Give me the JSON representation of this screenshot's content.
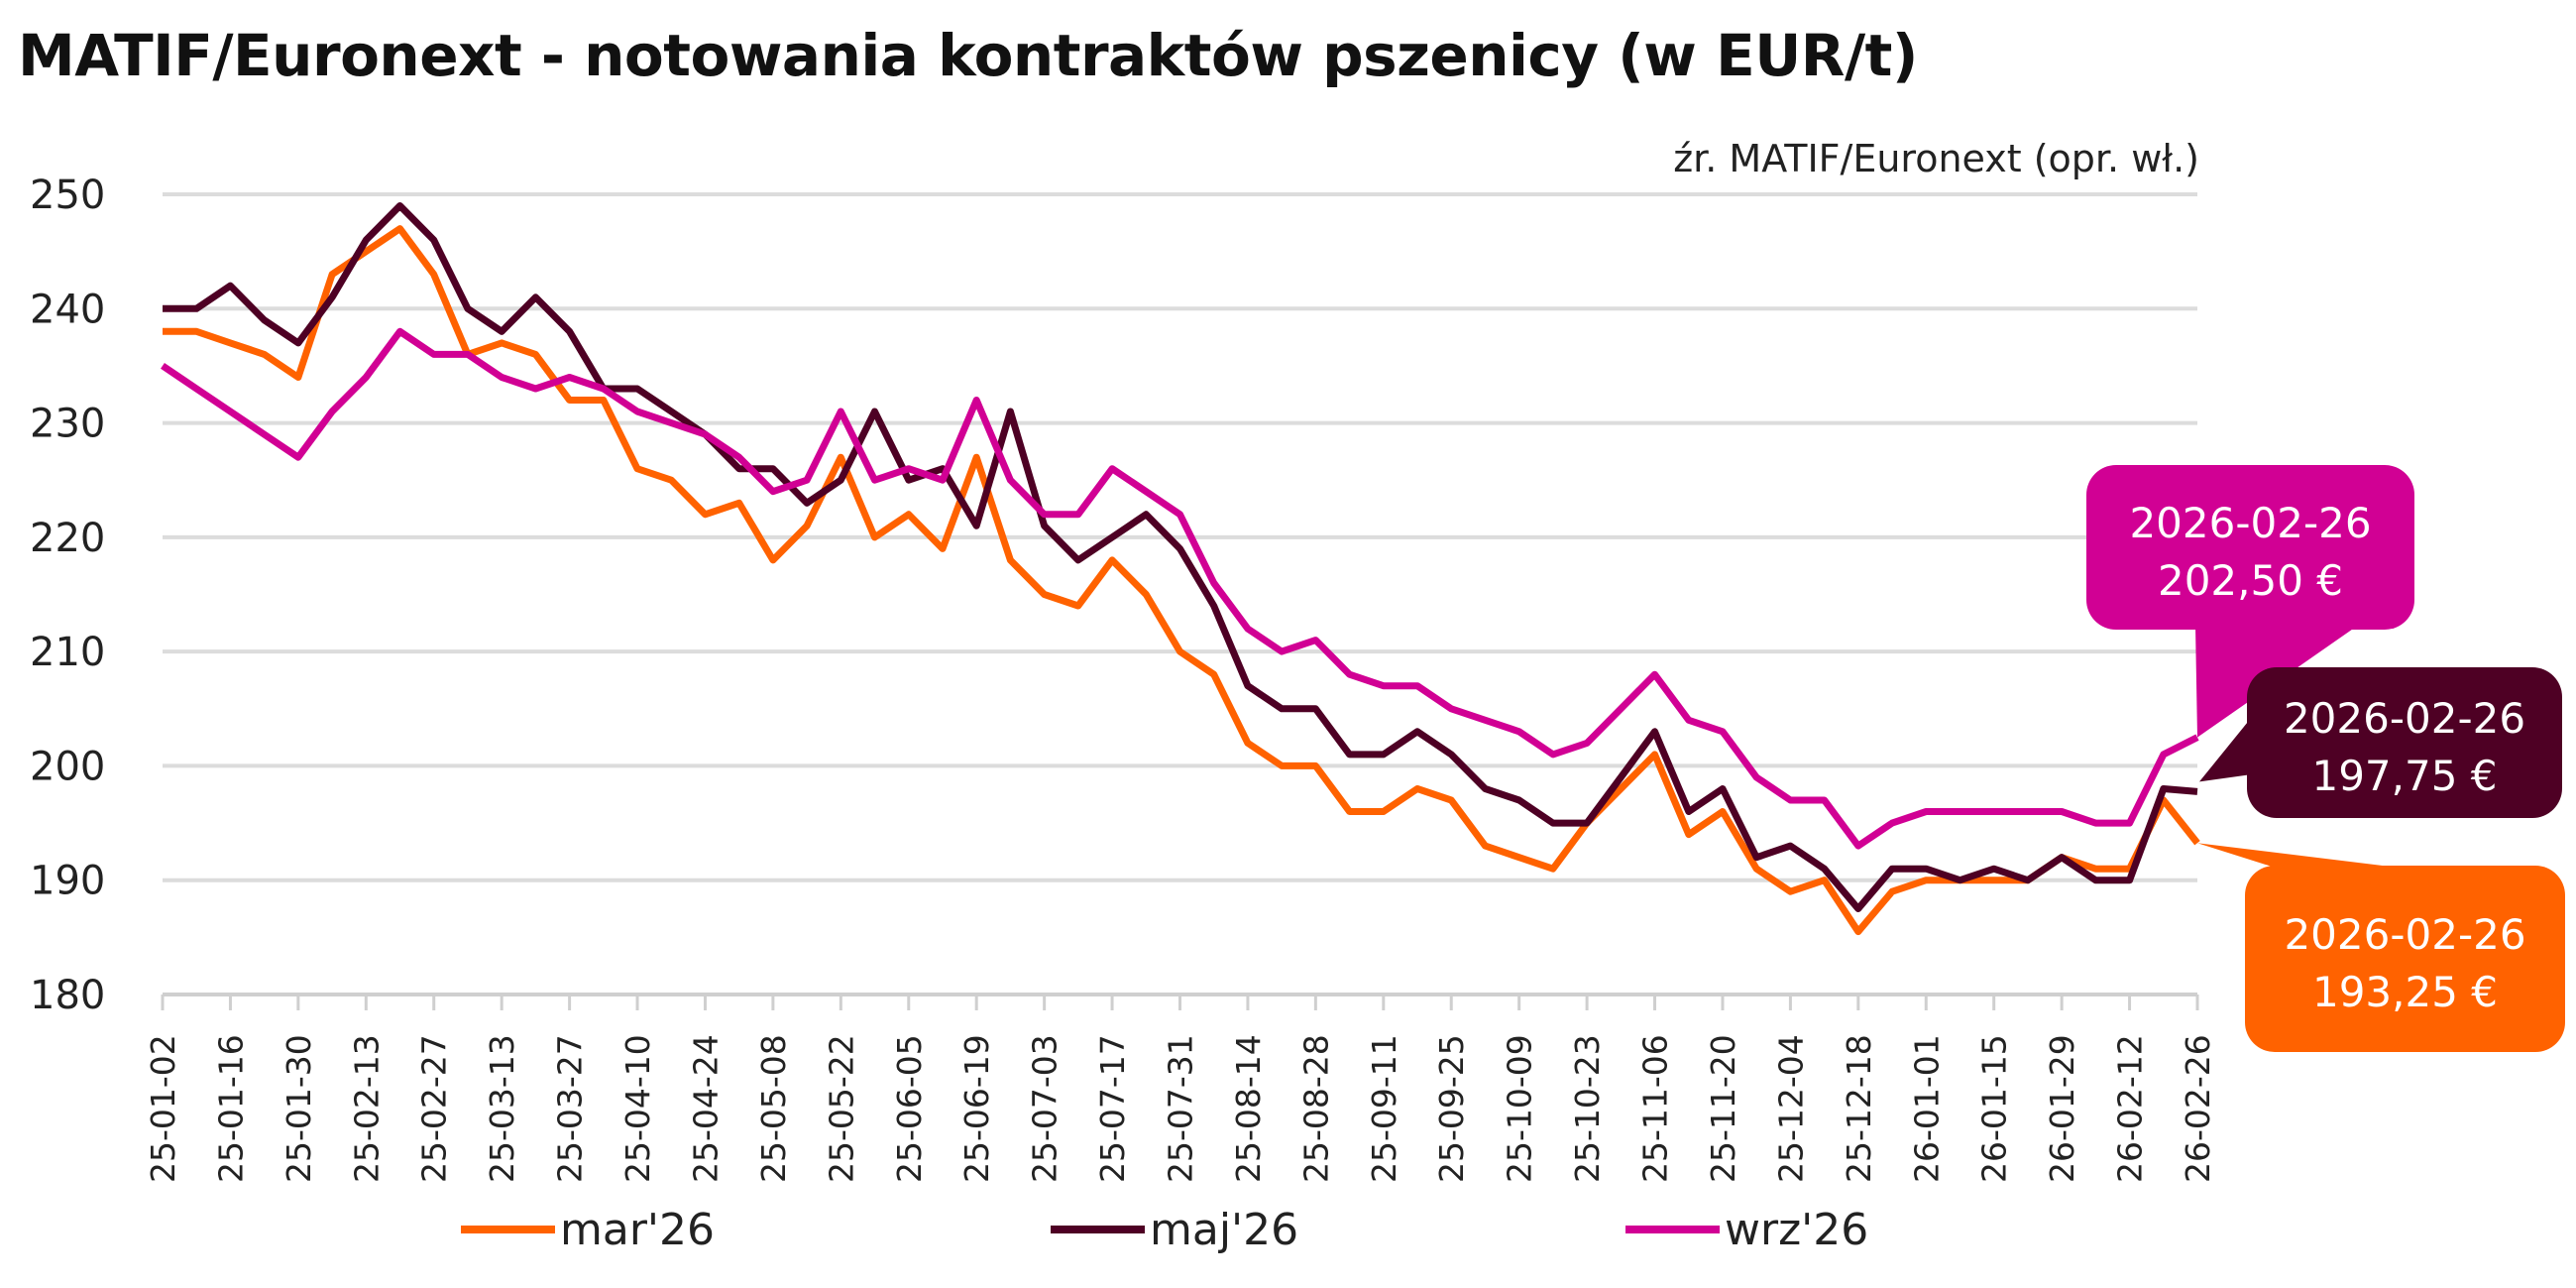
{
  "chart_data": {
    "type": "line",
    "title": "MATIF/Euronext - notowania kontraktów pszenicy (w EUR/t)",
    "source": "źr. MATIF/Euronext (opr. wł.)",
    "xlabel": "",
    "ylabel": "",
    "ylim": [
      180,
      250
    ],
    "yticks": [
      "180",
      "190",
      "200",
      "210",
      "220",
      "230",
      "240",
      "250"
    ],
    "grid": true,
    "legend_position": "bottom",
    "xticks": [
      "25-01-02",
      "25-01-16",
      "25-01-30",
      "25-02-13",
      "25-02-27",
      "25-03-13",
      "25-03-27",
      "25-04-10",
      "25-04-24",
      "25-05-08",
      "25-05-22",
      "25-06-05",
      "25-06-19",
      "25-07-03",
      "25-07-17",
      "25-07-31",
      "25-08-14",
      "25-08-28",
      "25-09-11",
      "25-09-25",
      "25-10-09",
      "25-10-23",
      "25-11-06",
      "25-11-20",
      "25-12-04",
      "25-12-18",
      "26-01-01",
      "26-01-15",
      "26-01-29",
      "26-02-12",
      "26-02-26"
    ],
    "x_frequency": "weekly, from 2025-01-02 to 2026-02-26",
    "series": [
      {
        "name": "mar'26",
        "color": "#FF6200",
        "values": [
          238,
          238,
          237,
          236,
          234,
          243,
          245,
          247,
          243,
          236,
          237,
          236,
          232,
          232,
          226,
          225,
          222,
          223,
          218,
          221,
          227,
          220,
          222,
          219,
          227,
          218,
          215,
          214,
          218,
          215,
          210,
          208,
          202,
          200,
          200,
          196,
          196,
          198,
          197,
          193,
          192,
          191,
          195,
          198,
          201,
          194,
          196,
          191,
          189,
          190,
          185.5,
          189,
          190,
          190,
          190,
          190,
          192,
          191,
          191,
          197,
          193.25
        ]
      },
      {
        "name": "maj'26",
        "color": "#4E0024",
        "values": [
          240,
          240,
          242,
          239,
          237,
          241,
          246,
          249,
          246,
          240,
          238,
          241,
          238,
          233,
          233,
          231,
          229,
          226,
          226,
          223,
          225,
          231,
          225,
          226,
          221,
          231,
          221,
          218,
          220,
          222,
          219,
          214,
          207,
          205,
          205,
          201,
          201,
          203,
          201,
          198,
          197,
          195,
          195,
          199,
          203,
          196,
          198,
          192,
          193,
          191,
          187.5,
          191,
          191,
          190,
          191,
          190,
          192,
          190,
          190,
          198,
          197.75
        ]
      },
      {
        "name": "wrz'26",
        "color": "#D10094",
        "values": [
          235,
          233,
          231,
          229,
          227,
          231,
          234,
          238,
          236,
          236,
          234,
          233,
          234,
          233,
          231,
          230,
          229,
          227,
          224,
          225,
          231,
          225,
          226,
          225,
          232,
          225,
          222,
          222,
          226,
          224,
          222,
          216,
          212,
          210,
          211,
          208,
          207,
          207,
          205,
          204,
          203,
          201,
          202,
          205,
          208,
          204,
          203,
          199,
          197,
          197,
          193,
          195,
          196,
          196,
          196,
          196,
          196,
          195,
          195,
          201,
          202.5
        ]
      }
    ],
    "annotations": [
      {
        "series": "wrz'26",
        "date": "2026-02-26",
        "value": "202,50 €",
        "color": "#D10094"
      },
      {
        "series": "maj'26",
        "date": "2026-02-26",
        "value": "197,75 €",
        "color": "#4E0024"
      },
      {
        "series": "mar'26",
        "date": "2026-02-26",
        "value": "193,25 €",
        "color": "#FF6200"
      }
    ]
  }
}
